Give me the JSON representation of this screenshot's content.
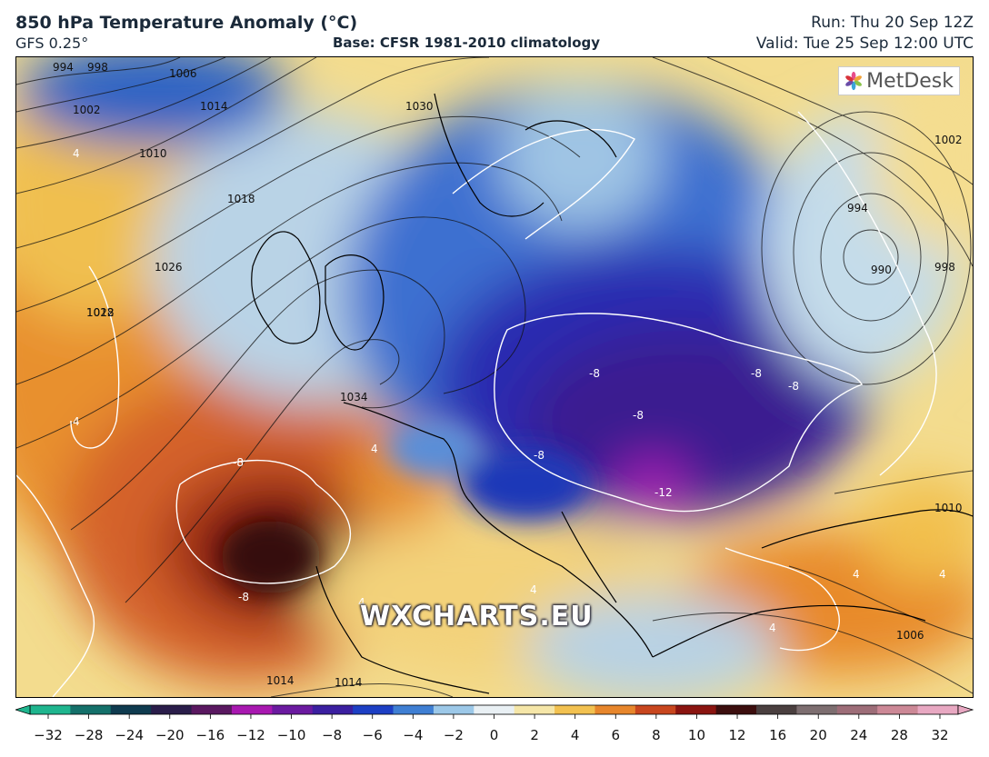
{
  "header": {
    "title": "850 hPa Temperature Anomaly (°C)",
    "subtitle": "GFS 0.25°",
    "base": "Base: CFSR 1981-2010 climatology",
    "run": "Run: Thu 20 Sep 12Z",
    "valid": "Valid: Tue 25 Sep 12:00 UTC"
  },
  "logo": {
    "text": "MetDesk",
    "icon": "metdesk-flower-icon"
  },
  "watermark": "WXCHARTS.EU",
  "map": {
    "pressure_labels": [
      "994",
      "998",
      "1002",
      "1006",
      "1010",
      "1014",
      "1018",
      "1022",
      "1026",
      "1030",
      "1034",
      "1002",
      "994",
      "990",
      "998",
      "1018",
      "1010",
      "1006",
      "1014",
      "1014"
    ],
    "anomaly_labels": [
      "4",
      "4",
      "-8",
      "-8",
      "-8",
      "-8",
      "-8",
      "-8",
      "-8",
      "-12",
      "4",
      "4",
      "4",
      "4",
      "4",
      "4"
    ]
  },
  "colorbar": {
    "ticks": [
      "−32",
      "−28",
      "−24",
      "−20",
      "−16",
      "−12",
      "−10",
      "−8",
      "−6",
      "−4",
      "−2",
      "0",
      "2",
      "4",
      "6",
      "8",
      "10",
      "12",
      "16",
      "20",
      "24",
      "28",
      "32"
    ],
    "colors": [
      "#1fb58e",
      "#14706a",
      "#0f3b4f",
      "#2a1d4a",
      "#5a1860",
      "#a818b0",
      "#6b1aa0",
      "#3b1fa0",
      "#1d3fc4",
      "#3f7fd3",
      "#9cc8e8",
      "#e9f0f4",
      "#f5e6a8",
      "#f2c150",
      "#e7862c",
      "#c8461e",
      "#8a1410",
      "#3c0e0e",
      "#4a3f3f",
      "#7d6e70",
      "#9d6d78",
      "#cc8896",
      "#e8a8c2"
    ]
  }
}
